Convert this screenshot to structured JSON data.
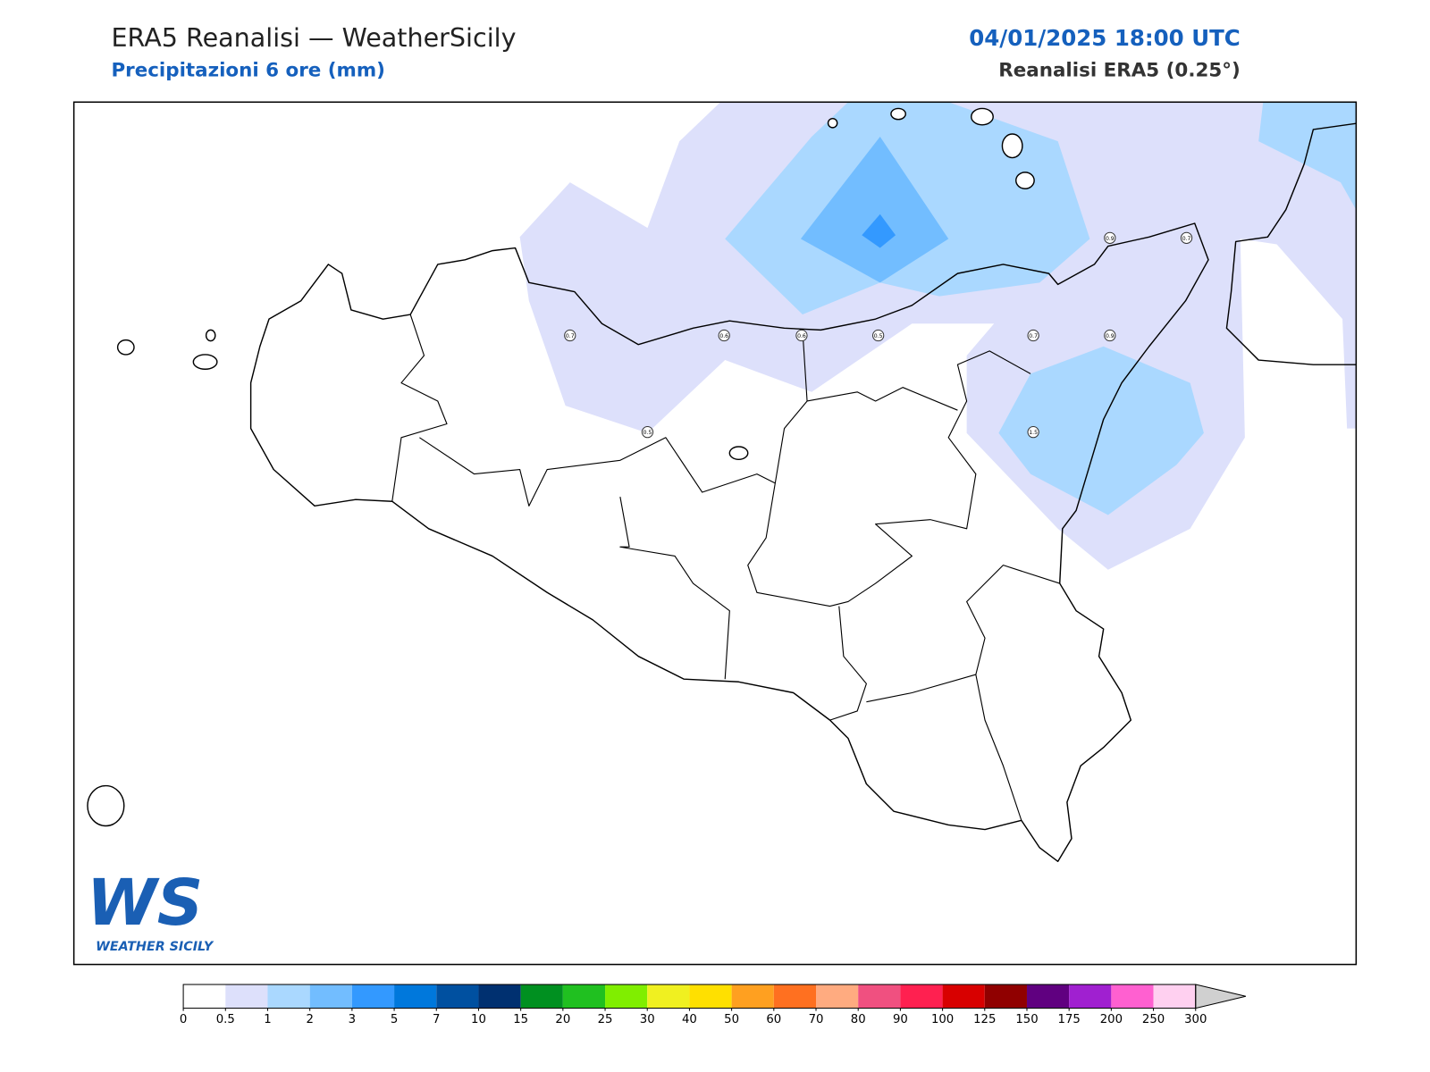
{
  "header": {
    "title": "ERA5 Reanalisi — WeatherSicily",
    "subtitle": "Precipitazioni 6 ore (mm)",
    "datetime": "04/01/2025 18:00 UTC",
    "source": "Reanalisi ERA5 (0.25°)"
  },
  "map": {
    "point_labels": [
      0.7,
      0.6,
      0.6,
      0.5,
      0.7,
      0.9,
      0.5,
      1.5,
      0.9,
      0.7
    ]
  },
  "colorbar": {
    "ticks": [
      0,
      0.5,
      1,
      2,
      3,
      5,
      7,
      10,
      15,
      20,
      25,
      30,
      40,
      50,
      60,
      70,
      80,
      90,
      100,
      125,
      150,
      175,
      200,
      250,
      300
    ],
    "colors": [
      "#ffffff",
      "#dde0fb",
      "#aad8ff",
      "#72bdff",
      "#3399ff",
      "#0078dc",
      "#0050a0",
      "#003070",
      "#009020",
      "#20c020",
      "#80ee00",
      "#f0f020",
      "#ffe000",
      "#ffa020",
      "#ff7020",
      "#ffab80",
      "#f05080",
      "#ff2050",
      "#d80000",
      "#900000",
      "#600080",
      "#a020d0",
      "#ff60d0",
      "#ffd0f0"
    ],
    "extend_color": "#d0d0d0"
  },
  "logo": {
    "mark": "WS",
    "text": "WEATHER SICILY"
  }
}
